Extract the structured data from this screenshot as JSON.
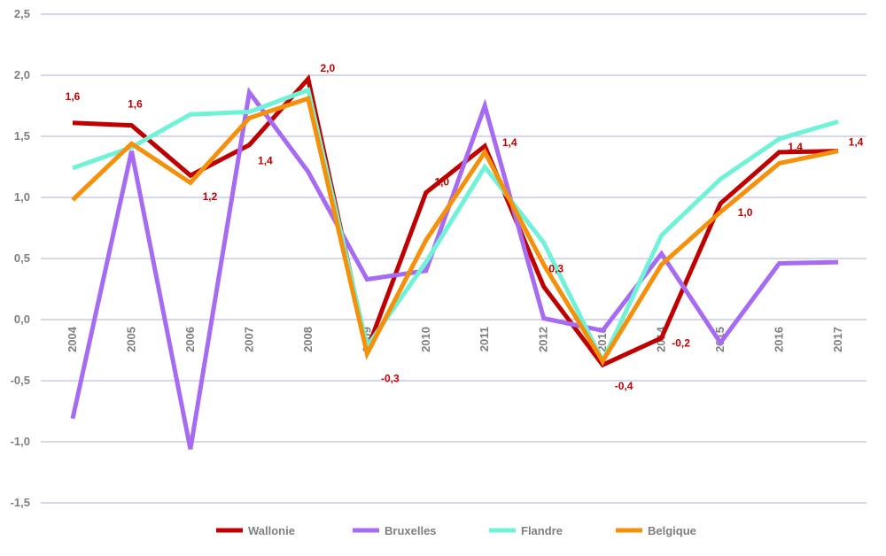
{
  "chart_data": {
    "type": "line",
    "title": "",
    "xlabel": "",
    "ylabel": "",
    "ylim": [
      -1.5,
      2.5
    ],
    "yticks": [
      "2,5",
      "2,0",
      "1,5",
      "1,0",
      "0,5",
      "0,0",
      "-0,5",
      "-1,0",
      "-1,5"
    ],
    "ytick_values": [
      2.5,
      2.0,
      1.5,
      1.0,
      0.5,
      0.0,
      -0.5,
      -1.0,
      -1.5
    ],
    "categories": [
      "2004",
      "2005",
      "2006",
      "2007",
      "2008",
      "2009",
      "2010",
      "2011",
      "2012",
      "2013",
      "2014",
      "2015",
      "2016",
      "2017"
    ],
    "grid": true,
    "legend_position": "bottom",
    "series": [
      {
        "name": "Wallonie",
        "color": "#c00000",
        "values": [
          1.61,
          1.59,
          1.18,
          1.43,
          1.97,
          -0.25,
          1.04,
          1.42,
          0.27,
          -0.37,
          -0.15,
          0.95,
          1.37,
          1.38
        ]
      },
      {
        "name": "Bruxelles",
        "color": "#a66bf2",
        "values": [
          -0.81,
          1.38,
          -1.06,
          1.86,
          1.21,
          0.33,
          0.4,
          1.75,
          0.01,
          -0.09,
          0.54,
          -0.19,
          0.46,
          0.47
        ]
      },
      {
        "name": "Flandre",
        "color": "#6ff2d8",
        "values": [
          1.24,
          1.41,
          1.68,
          1.7,
          1.88,
          -0.22,
          0.47,
          1.25,
          0.63,
          -0.34,
          0.69,
          1.15,
          1.48,
          1.62
        ]
      },
      {
        "name": "Belgique",
        "color": "#f5900a",
        "values": [
          0.98,
          1.44,
          1.12,
          1.65,
          1.81,
          -0.28,
          0.65,
          1.37,
          0.45,
          -0.34,
          0.45,
          0.88,
          1.28,
          1.38
        ]
      }
    ],
    "data_labels": [
      {
        "text": "1,6",
        "x": "2004",
        "y": 1.61
      },
      {
        "text": "1,6",
        "x": "2005",
        "y": 1.59
      },
      {
        "text": "1,2",
        "x": "2006",
        "y": 1.18
      },
      {
        "text": "1,4",
        "x": "2007",
        "y": 1.43
      },
      {
        "text": "2,0",
        "x": "2008",
        "y": 1.97
      },
      {
        "text": "-0,3",
        "x": "2009",
        "y": -0.25
      },
      {
        "text": "1,0",
        "x": "2010",
        "y": 1.04
      },
      {
        "text": "1,4",
        "x": "2011",
        "y": 1.42
      },
      {
        "text": "0,3",
        "x": "2012",
        "y": 0.27
      },
      {
        "text": "-0,4",
        "x": "2013",
        "y": -0.37
      },
      {
        "text": "-0,2",
        "x": "2014",
        "y": -0.15
      },
      {
        "text": "1,0",
        "x": "2015",
        "y": 0.95
      },
      {
        "text": "1,4",
        "x": "2016",
        "y": 1.37
      },
      {
        "text": "1,4",
        "x": "2017",
        "y": 1.38
      }
    ],
    "grid_color": "#aab0d6",
    "label_color": "#c00000"
  }
}
